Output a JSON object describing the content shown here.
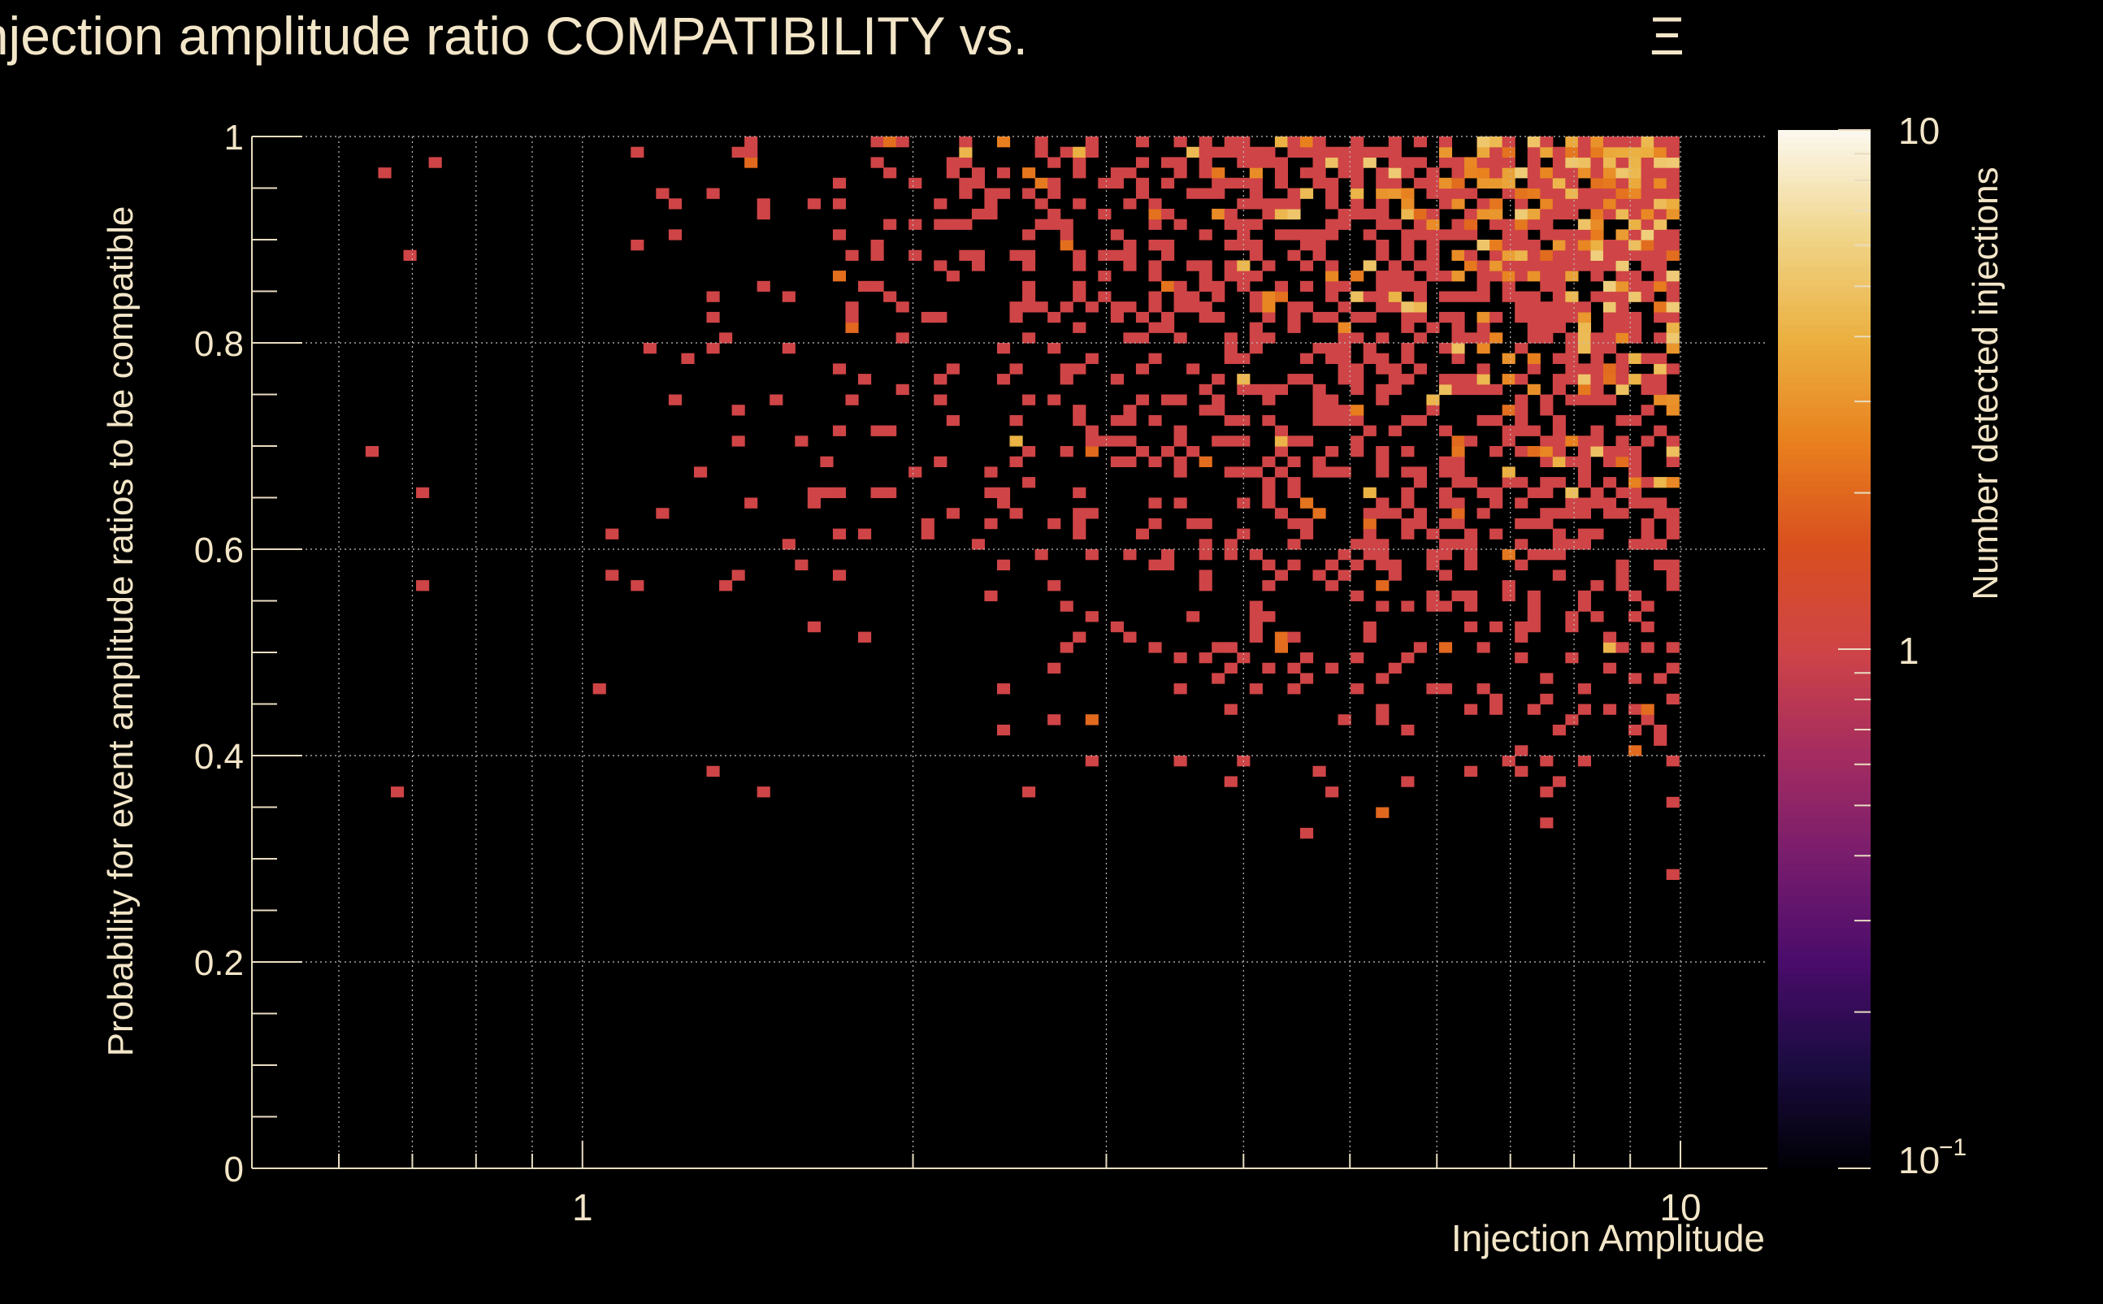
{
  "colors": {
    "background": "#000000",
    "text": "#f3e6c8",
    "axis": "#e8dcc0",
    "grid": "#bfbfbf"
  },
  "chart_data": {
    "type": "heatmap",
    "title_main": "Injection amplitude ratio COMPATIBILITY vs.",
    "title_symbol": "Ξ",
    "xlabel": "Injection Amplitude",
    "ylabel": "Probability for event amplitude ratios to be compatible",
    "colorbar_label": "Number detected injections",
    "x_scale": "log",
    "xlim": [
      0.5,
      12
    ],
    "ylim": [
      0,
      1
    ],
    "z_scale": "log",
    "zlim": [
      0.1,
      10
    ],
    "x_ticks": [
      {
        "value": 1,
        "label": "1"
      },
      {
        "value": 10,
        "label": "10"
      }
    ],
    "y_ticks": [
      {
        "value": 0,
        "label": "0"
      },
      {
        "value": 0.2,
        "label": "0.2"
      },
      {
        "value": 0.4,
        "label": "0.4"
      },
      {
        "value": 0.6,
        "label": "0.6"
      },
      {
        "value": 0.8,
        "label": "0.8"
      },
      {
        "value": 1,
        "label": "1"
      }
    ],
    "z_ticks": [
      {
        "value": 10,
        "label": "10"
      },
      {
        "value": 1,
        "label": "1"
      },
      {
        "value": 0.1,
        "label": "10",
        "exponent": "−1"
      }
    ],
    "colormap": [
      "#000004",
      "#1b0c41",
      "#4a0c6b",
      "#781c6d",
      "#a52c60",
      "#cf4446",
      "#d94f1f",
      "#e8801e",
      "#ebb040",
      "#f0d58a",
      "#fcf8ef"
    ],
    "bins": {
      "x_bins": 120,
      "y_bins": 100,
      "seed": 20240611,
      "description": "Injections concentrate at high amplitude (x>2) and high probability (y>0.6), sparse down to y≈0.28"
    }
  }
}
